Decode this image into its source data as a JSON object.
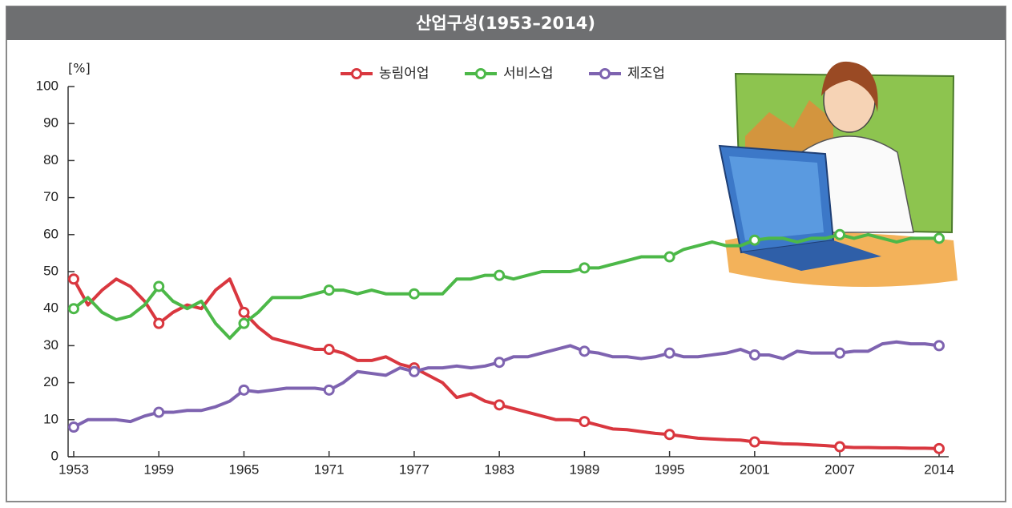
{
  "chart_data": {
    "type": "line",
    "title": "산업구성(1953–2014)",
    "y_label": "[%]",
    "x": [
      1953,
      1954,
      1955,
      1956,
      1957,
      1958,
      1959,
      1960,
      1961,
      1962,
      1963,
      1964,
      1965,
      1966,
      1967,
      1968,
      1969,
      1970,
      1971,
      1972,
      1973,
      1974,
      1975,
      1976,
      1977,
      1978,
      1979,
      1980,
      1981,
      1982,
      1983,
      1984,
      1985,
      1986,
      1987,
      1988,
      1989,
      1990,
      1991,
      1992,
      1993,
      1994,
      1995,
      1996,
      1997,
      1998,
      1999,
      2000,
      2001,
      2002,
      2003,
      2004,
      2005,
      2006,
      2007,
      2008,
      2009,
      2010,
      2011,
      2012,
      2013,
      2014
    ],
    "series": [
      {
        "name": "농림어업",
        "color": "#d9373f",
        "values": [
          48,
          41,
          45,
          48,
          46,
          42,
          36,
          39,
          41,
          40,
          45,
          48,
          39,
          35,
          32,
          31,
          30,
          29,
          29,
          28,
          26,
          26,
          27,
          25,
          24,
          22,
          20,
          16,
          17,
          15,
          14,
          13,
          12,
          11,
          10,
          10,
          9.5,
          8.5,
          7.5,
          7.3,
          6.8,
          6.3,
          6,
          5.5,
          5,
          4.8,
          4.6,
          4.5,
          4,
          3.8,
          3.5,
          3.4,
          3.2,
          3,
          2.7,
          2.5,
          2.5,
          2.4,
          2.4,
          2.3,
          2.3,
          2.2
        ]
      },
      {
        "name": "서비스업",
        "color": "#4cb848",
        "values": [
          40,
          43,
          39,
          37,
          38,
          41,
          46,
          42,
          40,
          42,
          36,
          32,
          36,
          39,
          43,
          43,
          43,
          44,
          45,
          45,
          44,
          45,
          44,
          44,
          44,
          44,
          44,
          48,
          48,
          49,
          49,
          48,
          49,
          50,
          50,
          50,
          51,
          51,
          52,
          53,
          54,
          54,
          54,
          56,
          57,
          58,
          57,
          57,
          58.5,
          59,
          59,
          58,
          59,
          59,
          60,
          59,
          60,
          59,
          58,
          59,
          59,
          59
        ]
      },
      {
        "name": "제조업",
        "color": "#7e63b0",
        "values": [
          8,
          10,
          10,
          10,
          9.5,
          11,
          12,
          12,
          12.5,
          12.5,
          13.5,
          15,
          18,
          17.5,
          18,
          18.5,
          18.5,
          18.5,
          18,
          20,
          23,
          22.5,
          22,
          24,
          23,
          24,
          24,
          24.5,
          24,
          24.5,
          25.5,
          27,
          27,
          28,
          29,
          30,
          28.5,
          28,
          27,
          27,
          26.5,
          27,
          28,
          27,
          27,
          27.5,
          28,
          29,
          27.5,
          27.5,
          26.5,
          28.5,
          28,
          28,
          28,
          28.5,
          28.5,
          30.5,
          31,
          30.5,
          30.5,
          30
        ]
      }
    ],
    "xlim": [
      1953,
      2014
    ],
    "xticks": [
      1953,
      1959,
      1965,
      1971,
      1977,
      1983,
      1989,
      1995,
      2001,
      2007,
      2014
    ],
    "ylim": [
      0,
      100
    ],
    "yticks": [
      0,
      10,
      20,
      30,
      40,
      50,
      60,
      70,
      80,
      90,
      100
    ]
  }
}
